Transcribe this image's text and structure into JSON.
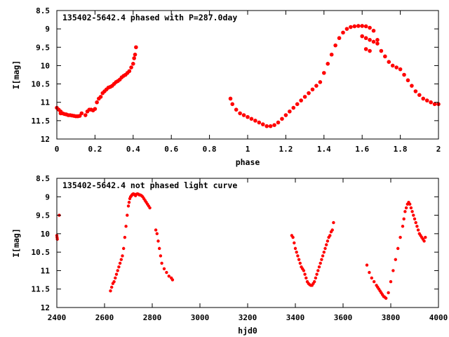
{
  "chart_data": [
    {
      "type": "scatter",
      "title": "135402-5642.4 phased with P=287.0day",
      "xlabel": "phase",
      "ylabel": "I[mag]",
      "xlim": [
        0,
        2
      ],
      "ylim": [
        8.5,
        12
      ],
      "y_inverted": true,
      "grid": false,
      "marker_color": "#ff0000",
      "marker": "filled-circle",
      "x_ticks": [
        "0",
        "0.2",
        "0.4",
        "0.6",
        "0.8",
        "1",
        "1.2",
        "1.4",
        "1.6",
        "1.8",
        "2"
      ],
      "y_ticks": [
        "8.5",
        "9",
        "9.5",
        "10",
        "10.5",
        "11",
        "11.5",
        "12"
      ],
      "series": [
        {
          "x": [
            0.0,
            0.01,
            0.02,
            0.02,
            0.03,
            0.04,
            0.05,
            0.06,
            0.07,
            0.08,
            0.09,
            0.1,
            0.11,
            0.12,
            0.13,
            0.15,
            0.16,
            0.17,
            0.18,
            0.19,
            0.2,
            0.21,
            0.22,
            0.23,
            0.24,
            0.25,
            0.26,
            0.27,
            0.28,
            0.29,
            0.3,
            0.31,
            0.32,
            0.33,
            0.34,
            0.35,
            0.36,
            0.37,
            0.38,
            0.39,
            0.4,
            0.405,
            0.41,
            0.415,
            0.91,
            0.92,
            0.94,
            0.96,
            0.98,
            1.0,
            1.02,
            1.04,
            1.06,
            1.08,
            1.1,
            1.12,
            1.14,
            1.16,
            1.18,
            1.2,
            1.22,
            1.24,
            1.26,
            1.28,
            1.3,
            1.32,
            1.34,
            1.36,
            1.38,
            1.4,
            1.42,
            1.44,
            1.46,
            1.48,
            1.5,
            1.52,
            1.54,
            1.56,
            1.58,
            1.6,
            1.62,
            1.64,
            1.66,
            1.68,
            1.7,
            1.72,
            1.74,
            1.76,
            1.78,
            1.8,
            1.82,
            1.84,
            1.86,
            1.88,
            1.9,
            1.92,
            1.94,
            1.96,
            1.98,
            2.0,
            1.6,
            1.62,
            1.64,
            1.66,
            1.68,
            1.62,
            1.64
          ],
          "y": [
            11.15,
            11.2,
            11.25,
            11.3,
            11.3,
            11.32,
            11.33,
            11.35,
            11.35,
            11.36,
            11.37,
            11.38,
            11.38,
            11.37,
            11.3,
            11.35,
            11.25,
            11.2,
            11.2,
            11.22,
            11.18,
            11.0,
            10.9,
            10.85,
            10.75,
            10.7,
            10.65,
            10.6,
            10.58,
            10.55,
            10.5,
            10.45,
            10.42,
            10.38,
            10.32,
            10.28,
            10.25,
            10.2,
            10.15,
            10.05,
            9.95,
            9.8,
            9.7,
            9.5,
            10.9,
            11.05,
            11.2,
            11.3,
            11.35,
            11.4,
            11.45,
            11.5,
            11.55,
            11.6,
            11.65,
            11.65,
            11.62,
            11.55,
            11.45,
            11.35,
            11.25,
            11.15,
            11.05,
            10.95,
            10.85,
            10.75,
            10.65,
            10.55,
            10.45,
            10.2,
            9.95,
            9.7,
            9.45,
            9.25,
            9.1,
            9.0,
            8.95,
            8.93,
            8.92,
            8.92,
            8.93,
            8.97,
            9.05,
            9.3,
            9.6,
            9.75,
            9.9,
            10.0,
            10.05,
            10.1,
            10.25,
            10.4,
            10.55,
            10.7,
            10.8,
            10.9,
            10.95,
            11.0,
            11.05,
            11.05,
            9.2,
            9.25,
            9.3,
            9.35,
            9.4,
            9.55,
            9.6
          ]
        }
      ]
    },
    {
      "type": "scatter",
      "title": "135402-5642.4 not phased light curve",
      "xlabel": "hjd0",
      "ylabel": "I[mag]",
      "xlim": [
        2400,
        4000
      ],
      "ylim": [
        8.5,
        12
      ],
      "y_inverted": true,
      "grid": false,
      "marker_color": "#ff0000",
      "marker": "filled-circle",
      "x_ticks": [
        "2400",
        "2600",
        "2800",
        "3000",
        "3200",
        "3400",
        "3600",
        "3800",
        "4000"
      ],
      "y_ticks": [
        "8.5",
        "9",
        "9.5",
        "10",
        "10.5",
        "11",
        "11.5",
        "12"
      ],
      "series": [
        {
          "x": [
            2400,
            2401,
            2402,
            2410,
            2625,
            2630,
            2635,
            2640,
            2645,
            2650,
            2655,
            2660,
            2665,
            2670,
            2675,
            2680,
            2685,
            2690,
            2695,
            2700,
            2703,
            2706,
            2709,
            2712,
            2715,
            2718,
            2721,
            2724,
            2727,
            2730,
            2734,
            2738,
            2742,
            2746,
            2750,
            2755,
            2760,
            2765,
            2770,
            2775,
            2780,
            2785,
            2790,
            2815,
            2820,
            2825,
            2830,
            2835,
            2840,
            2850,
            2860,
            2870,
            2880,
            2885,
            3385,
            3390,
            3395,
            3400,
            3405,
            3410,
            3415,
            3420,
            3425,
            3430,
            3435,
            3440,
            3445,
            3450,
            3455,
            3460,
            3465,
            3470,
            3475,
            3480,
            3485,
            3490,
            3495,
            3500,
            3505,
            3510,
            3515,
            3520,
            3525,
            3530,
            3535,
            3540,
            3545,
            3550,
            3555,
            3560,
            3700,
            3710,
            3720,
            3730,
            3740,
            3745,
            3750,
            3755,
            3760,
            3765,
            3770,
            3775,
            3780,
            3790,
            3800,
            3810,
            3820,
            3830,
            3840,
            3850,
            3855,
            3860,
            3865,
            3870,
            3875,
            3880,
            3885,
            3890,
            3895,
            3900,
            3905,
            3910,
            3915,
            3920,
            3925,
            3930,
            3935,
            3940,
            3945
          ],
          "y": [
            10.05,
            10.1,
            10.15,
            9.5,
            11.55,
            11.45,
            11.35,
            11.3,
            11.2,
            11.1,
            11.0,
            10.9,
            10.8,
            10.7,
            10.6,
            10.4,
            10.1,
            9.8,
            9.5,
            9.25,
            9.15,
            9.05,
            9.0,
            8.98,
            8.95,
            8.93,
            8.92,
            8.93,
            8.95,
            8.97,
            8.93,
            8.92,
            8.93,
            8.95,
            8.95,
            8.97,
            9.0,
            9.05,
            9.1,
            9.15,
            9.2,
            9.25,
            9.3,
            9.9,
            10.0,
            10.2,
            10.4,
            10.6,
            10.8,
            10.95,
            11.05,
            11.15,
            11.2,
            11.25,
            10.05,
            10.1,
            10.25,
            10.4,
            10.5,
            10.6,
            10.7,
            10.8,
            10.9,
            10.95,
            11.0,
            11.1,
            11.2,
            11.3,
            11.35,
            11.38,
            11.4,
            11.4,
            11.35,
            11.3,
            11.2,
            11.1,
            11.0,
            10.9,
            10.8,
            10.7,
            10.6,
            10.5,
            10.4,
            10.3,
            10.2,
            10.1,
            10.05,
            9.95,
            9.9,
            9.7,
            10.85,
            11.05,
            11.2,
            11.3,
            11.4,
            11.45,
            11.5,
            11.55,
            11.6,
            11.65,
            11.7,
            11.72,
            11.75,
            11.6,
            11.3,
            11.0,
            10.7,
            10.4,
            10.1,
            9.8,
            9.6,
            9.4,
            9.3,
            9.2,
            9.15,
            9.2,
            9.3,
            9.4,
            9.5,
            9.6,
            9.7,
            9.8,
            9.9,
            10.0,
            10.05,
            10.1,
            10.15,
            10.2,
            10.1
          ]
        }
      ]
    }
  ]
}
